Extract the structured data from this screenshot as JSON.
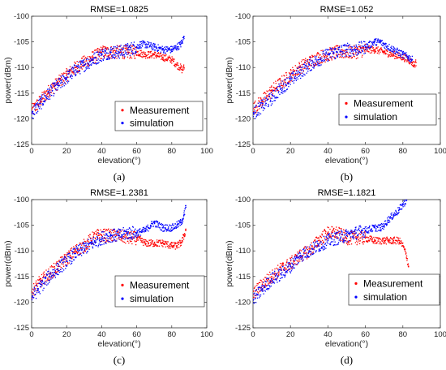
{
  "chart_data": [
    {
      "type": "scatter",
      "panel_label": "(a)",
      "title": "RMSE=1.0825",
      "xlabel": "elevation(°)",
      "ylabel": "power(dBm)",
      "xlim": [
        0,
        100
      ],
      "ylim": [
        -125,
        -100
      ],
      "xticks": [
        "0",
        "20",
        "40",
        "60",
        "80",
        "100"
      ],
      "yticks": [
        "-100",
        "-105",
        "-110",
        "-115",
        "-120",
        "-125"
      ],
      "legend": {
        "position": "lower-right",
        "entries": [
          "Measurement",
          "simulation"
        ]
      },
      "series": [
        {
          "name": "Measurement",
          "color": "#ff0000",
          "x": [
            0,
            5,
            10,
            15,
            20,
            25,
            30,
            35,
            38,
            40,
            45,
            50,
            55,
            60,
            65,
            70,
            75,
            80,
            83,
            85,
            86,
            87
          ],
          "y": [
            -118.5,
            -116.5,
            -114.5,
            -113,
            -111.5,
            -110,
            -109,
            -108,
            -107.5,
            -107,
            -107,
            -107,
            -107,
            -107,
            -107.5,
            -107.5,
            -108,
            -108.5,
            -109.5,
            -110,
            -110.5,
            -110
          ]
        },
        {
          "name": "simulation",
          "color": "#0000ff",
          "x": [
            0,
            5,
            10,
            15,
            20,
            25,
            30,
            35,
            40,
            45,
            50,
            55,
            60,
            62,
            65,
            70,
            75,
            80,
            83,
            85,
            86,
            87
          ],
          "y": [
            -119,
            -117,
            -115,
            -113.5,
            -112,
            -110.5,
            -109.5,
            -108.5,
            -107.5,
            -107,
            -107,
            -106.5,
            -106,
            -105.5,
            -105.5,
            -106,
            -106.5,
            -106.5,
            -106,
            -105.5,
            -105,
            -104
          ]
        }
      ]
    },
    {
      "type": "scatter",
      "panel_label": "(b)",
      "title": "RMSE=1.052",
      "xlabel": "elevation(°)",
      "ylabel": "power(dBm)",
      "xlim": [
        0,
        100
      ],
      "ylim": [
        -125,
        -100
      ],
      "xticks": [
        "0",
        "20",
        "40",
        "60",
        "80",
        "100"
      ],
      "yticks": [
        "-100",
        "-105",
        "-110",
        "-115",
        "-120",
        "-125"
      ],
      "legend": {
        "position": "lower-right",
        "entries": [
          "Measurement",
          "simulation"
        ]
      },
      "series": [
        {
          "name": "Measurement",
          "color": "#ff0000",
          "x": [
            0,
            5,
            10,
            15,
            20,
            25,
            30,
            35,
            40,
            45,
            50,
            55,
            60,
            65,
            70,
            75,
            80,
            83,
            85,
            86,
            87
          ],
          "y": [
            -118,
            -116.5,
            -114.5,
            -113,
            -111.5,
            -110,
            -109,
            -108,
            -107.5,
            -107,
            -107,
            -107,
            -106.5,
            -106.5,
            -107,
            -107.5,
            -108,
            -108.5,
            -109,
            -109.5,
            -109
          ]
        },
        {
          "name": "simulation",
          "color": "#0000ff",
          "x": [
            0,
            5,
            10,
            15,
            20,
            25,
            30,
            35,
            40,
            45,
            50,
            55,
            60,
            65,
            68,
            70,
            75,
            80,
            83,
            85
          ],
          "y": [
            -119,
            -117.5,
            -116,
            -114,
            -112.5,
            -111,
            -109.5,
            -108.5,
            -107.5,
            -107,
            -106.5,
            -106.5,
            -106,
            -105,
            -105,
            -105.5,
            -106.5,
            -107.5,
            -108,
            -108.5
          ]
        }
      ]
    },
    {
      "type": "scatter",
      "panel_label": "(c)",
      "title": "RMSE=1.2381",
      "xlabel": "elevation(°)",
      "ylabel": "power(dBm)",
      "xlim": [
        0,
        100
      ],
      "ylim": [
        -125,
        -100
      ],
      "xticks": [
        "0",
        "20",
        "40",
        "60",
        "80",
        "100"
      ],
      "yticks": [
        "-100",
        "-105",
        "-110",
        "-115",
        "-120",
        "-125"
      ],
      "legend": {
        "position": "lower-right",
        "entries": [
          "Measurement",
          "simulation"
        ]
      },
      "series": [
        {
          "name": "Measurement",
          "color": "#ff0000",
          "x": [
            0,
            5,
            10,
            15,
            20,
            25,
            30,
            35,
            38,
            40,
            45,
            50,
            55,
            60,
            65,
            70,
            75,
            80,
            83,
            85,
            86,
            87,
            88
          ],
          "y": [
            -118,
            -116,
            -114.5,
            -113,
            -111.5,
            -110,
            -109,
            -107.5,
            -107,
            -107,
            -107,
            -107,
            -107.5,
            -107.5,
            -108.5,
            -108.5,
            -108.5,
            -109,
            -109,
            -108.5,
            -108,
            -107,
            -106
          ]
        },
        {
          "name": "simulation",
          "color": "#0000ff",
          "x": [
            0,
            5,
            10,
            15,
            20,
            25,
            30,
            35,
            40,
            45,
            50,
            55,
            60,
            65,
            68,
            70,
            75,
            80,
            83,
            85,
            86,
            87,
            88
          ],
          "y": [
            -119,
            -117,
            -115,
            -113.5,
            -112,
            -110.5,
            -109.5,
            -108.5,
            -107.5,
            -107,
            -107,
            -106.5,
            -106.5,
            -106,
            -105,
            -104.5,
            -105.5,
            -105.5,
            -105,
            -104.5,
            -104,
            -103,
            -101.5
          ]
        }
      ]
    },
    {
      "type": "scatter",
      "panel_label": "(d)",
      "title": "RMSE=1.1821",
      "xlabel": "elevation(°)",
      "ylabel": "power(dBm)",
      "xlim": [
        0,
        100
      ],
      "ylim": [
        -125,
        -100
      ],
      "xticks": [
        "0",
        "20",
        "40",
        "60",
        "80",
        "100"
      ],
      "yticks": [
        "-100",
        "-105",
        "-110",
        "-115",
        "-120",
        "-125"
      ],
      "legend": {
        "position": "lower-right",
        "entries": [
          "Measurement",
          "simulation"
        ]
      },
      "series": [
        {
          "name": "Measurement",
          "color": "#ff0000",
          "x": [
            0,
            5,
            10,
            15,
            20,
            25,
            30,
            35,
            40,
            45,
            50,
            55,
            60,
            65,
            70,
            72,
            75,
            78,
            80,
            82,
            83
          ],
          "y": [
            -118.5,
            -116.5,
            -115,
            -113.5,
            -112.5,
            -111,
            -110,
            -108,
            -106.5,
            -106.5,
            -107.5,
            -107.5,
            -107.5,
            -108,
            -108,
            -108,
            -108,
            -108,
            -109,
            -111,
            -113
          ]
        },
        {
          "name": "simulation",
          "color": "#0000ff",
          "x": [
            0,
            5,
            10,
            15,
            20,
            25,
            30,
            35,
            40,
            45,
            50,
            55,
            60,
            65,
            68,
            70,
            72,
            75,
            78,
            80,
            82
          ],
          "y": [
            -119.5,
            -117.5,
            -115.5,
            -114.5,
            -113,
            -111,
            -110,
            -109,
            -108,
            -107.5,
            -107,
            -106.5,
            -106,
            -105.5,
            -105.5,
            -105,
            -104,
            -103,
            -102,
            -101,
            -100
          ]
        }
      ]
    }
  ]
}
